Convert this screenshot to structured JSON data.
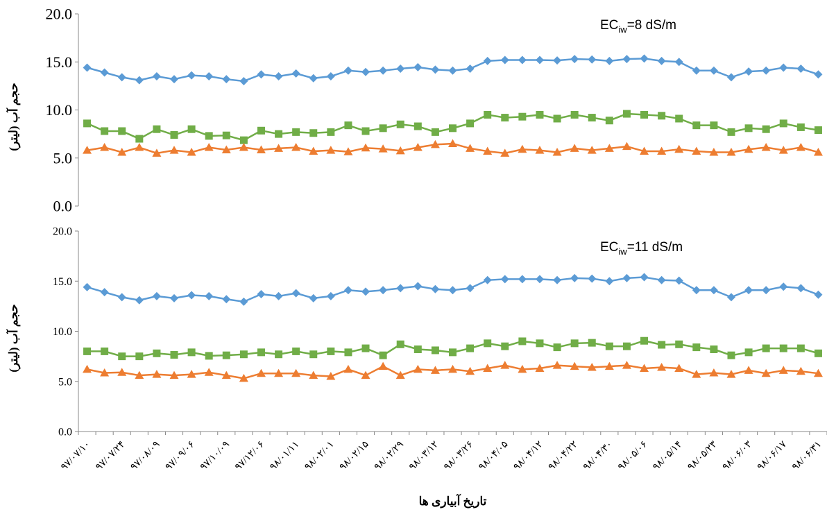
{
  "chart_data": [
    {
      "type": "line",
      "annotation": {
        "main": "EC",
        "sub": "iw",
        "rest": "=8 dS/m"
      },
      "y_label": "حجم آب (لیتر)",
      "ylim": [
        0,
        20
      ],
      "yticks": [
        {
          "value": 0,
          "label": "0.0"
        },
        {
          "value": 5,
          "label": "5.0"
        },
        {
          "value": 10,
          "label": "10.0"
        },
        {
          "value": 15,
          "label": "15.0"
        },
        {
          "value": 20,
          "label": "20.0"
        }
      ],
      "series": [
        {
          "color": "#5b9bd5",
          "marker": "diamond",
          "values": [
            14.4,
            13.9,
            13.4,
            13.1,
            13.5,
            13.2,
            13.6,
            13.5,
            13.2,
            13.0,
            13.7,
            13.5,
            13.8,
            13.3,
            13.5,
            14.1,
            13.95,
            14.1,
            14.3,
            14.45,
            14.2,
            14.1,
            14.3,
            15.1,
            15.2,
            15.2,
            15.2,
            15.15,
            15.3,
            15.25,
            15.1,
            15.3,
            15.35,
            15.1,
            15.0,
            14.1,
            14.1,
            13.4,
            14.0,
            14.1,
            14.4,
            14.3,
            13.7
          ]
        },
        {
          "color": "#70ad47",
          "marker": "square",
          "values": [
            8.6,
            7.8,
            7.8,
            7.0,
            8.0,
            7.4,
            8.0,
            7.3,
            7.35,
            6.85,
            7.85,
            7.5,
            7.7,
            7.6,
            7.7,
            8.4,
            7.8,
            8.1,
            8.5,
            8.3,
            7.7,
            8.1,
            8.6,
            9.5,
            9.2,
            9.3,
            9.5,
            9.1,
            9.5,
            9.2,
            8.9,
            9.6,
            9.5,
            9.4,
            9.1,
            8.4,
            8.4,
            7.7,
            8.1,
            8.0,
            8.6,
            8.2,
            7.9
          ]
        },
        {
          "color": "#ed7d31",
          "marker": "triangle",
          "values": [
            5.8,
            6.1,
            5.6,
            6.1,
            5.5,
            5.8,
            5.6,
            6.1,
            5.85,
            6.1,
            5.85,
            6.0,
            6.1,
            5.7,
            5.8,
            5.65,
            6.05,
            5.95,
            5.75,
            6.1,
            6.4,
            6.5,
            6.0,
            5.7,
            5.5,
            5.9,
            5.8,
            5.6,
            6.0,
            5.8,
            6.0,
            6.2,
            5.7,
            5.7,
            5.9,
            5.7,
            5.6,
            5.6,
            5.9,
            6.1,
            5.8,
            6.1,
            5.6
          ]
        }
      ]
    },
    {
      "type": "line",
      "annotation": {
        "main": "EC",
        "sub": "iw",
        "rest": "=11 dS/m"
      },
      "y_label": "حجم آب (لیتر)",
      "x_label": "تاریخ آبیاری ها",
      "categories": [
        "۹۷/۰۷/۱۰",
        null,
        "۹۷/۰۷/۲۴",
        null,
        "۹۷/۰۸/۰۹",
        null,
        "۹۷/۰۹/۰۶",
        null,
        "۹۷/۱۰/۰۹",
        null,
        "۹۷/۱۲/۰۶",
        null,
        "۹۸/۰۱/۱۱",
        null,
        "۹۸/۰۲/۰۱",
        null,
        "۹۸/۰۲/۱۵",
        null,
        "۹۸/۰۲/۲۹",
        null,
        "۹۸/۰۳/۱۲",
        null,
        "۹۸/۰۳/۲۶",
        null,
        "۹۸/۰۴/۰۵",
        null,
        "۹۸/۰۴/۱۲",
        null,
        "۹۸/۰۴/۲۲",
        null,
        "۹۸/۰۴/۳۰",
        null,
        "۹۸/۰۵/۰۶",
        null,
        "۹۸/۰۵/۱۴",
        null,
        "۹۸/۰۵/۲۳",
        null,
        "۹۸/۰۶/۰۳",
        null,
        "۹۸/۰۶/۱۷",
        null,
        "۹۸/۰۶/۳۱"
      ],
      "ylim": [
        0,
        20
      ],
      "yticks": [
        {
          "value": 0,
          "label": "0.0"
        },
        {
          "value": 5,
          "label": "5.0"
        },
        {
          "value": 10,
          "label": "10.0"
        },
        {
          "value": 15,
          "label": "15.0"
        },
        {
          "value": 20,
          "label": "20.0"
        }
      ],
      "series": [
        {
          "color": "#5b9bd5",
          "marker": "diamond",
          "values": [
            14.4,
            13.9,
            13.4,
            13.1,
            13.5,
            13.3,
            13.6,
            13.5,
            13.2,
            12.95,
            13.7,
            13.5,
            13.8,
            13.3,
            13.5,
            14.1,
            13.95,
            14.1,
            14.3,
            14.5,
            14.2,
            14.1,
            14.3,
            15.1,
            15.2,
            15.2,
            15.2,
            15.1,
            15.3,
            15.25,
            15.0,
            15.3,
            15.4,
            15.1,
            15.05,
            14.1,
            14.1,
            13.4,
            14.1,
            14.1,
            14.45,
            14.3,
            13.65
          ]
        },
        {
          "color": "#70ad47",
          "marker": "square",
          "values": [
            8.0,
            8.0,
            7.5,
            7.5,
            7.8,
            7.65,
            7.9,
            7.55,
            7.6,
            7.7,
            7.9,
            7.7,
            8.0,
            7.7,
            8.0,
            7.9,
            8.3,
            7.6,
            8.7,
            8.2,
            8.1,
            7.9,
            8.3,
            8.8,
            8.5,
            9.0,
            8.8,
            8.4,
            8.8,
            8.85,
            8.5,
            8.5,
            9.05,
            8.65,
            8.7,
            8.4,
            8.2,
            7.6,
            7.9,
            8.3,
            8.3,
            8.3,
            7.8
          ]
        },
        {
          "color": "#ed7d31",
          "marker": "triangle",
          "values": [
            6.2,
            5.85,
            5.9,
            5.6,
            5.7,
            5.6,
            5.7,
            5.9,
            5.6,
            5.3,
            5.8,
            5.8,
            5.8,
            5.6,
            5.5,
            6.2,
            5.6,
            6.5,
            5.6,
            6.2,
            6.1,
            6.2,
            6.0,
            6.3,
            6.6,
            6.2,
            6.3,
            6.6,
            6.5,
            6.4,
            6.5,
            6.6,
            6.3,
            6.4,
            6.3,
            5.7,
            5.85,
            5.7,
            6.1,
            5.8,
            6.1,
            6.0,
            5.8
          ]
        }
      ]
    }
  ]
}
